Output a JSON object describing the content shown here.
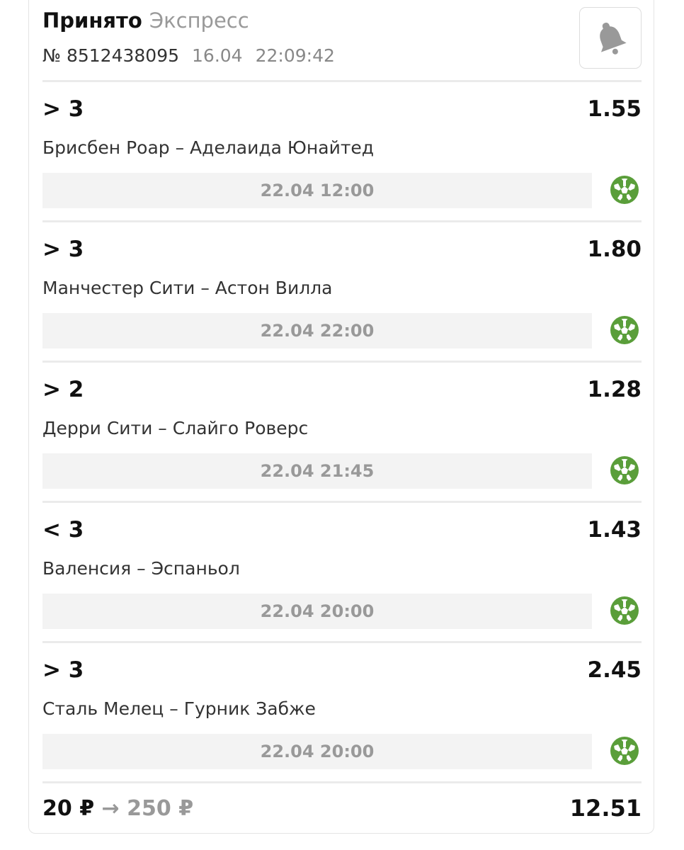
{
  "header": {
    "status": "Принято",
    "type": "Экспресс",
    "number": "№ 8512438095",
    "date": "16.04",
    "time": "22:09:42",
    "bell_icon": "bell-icon"
  },
  "events": [
    {
      "selection": "> 3",
      "odds": "1.55",
      "teams": "Брисбен Роар – Аделаида Юнайтед",
      "start": "22.04 12:00",
      "sport_icon": "soccer-ball-icon"
    },
    {
      "selection": "> 3",
      "odds": "1.80",
      "teams": "Манчестер Сити – Астон Вилла",
      "start": "22.04 22:00",
      "sport_icon": "soccer-ball-icon"
    },
    {
      "selection": "> 2",
      "odds": "1.28",
      "teams": "Дерри Сити – Слайго Роверс",
      "start": "22.04 21:45",
      "sport_icon": "soccer-ball-icon"
    },
    {
      "selection": "< 3",
      "odds": "1.43",
      "teams": "Валенсия – Эспаньол",
      "start": "22.04 20:00",
      "sport_icon": "soccer-ball-icon"
    },
    {
      "selection": "> 3",
      "odds": "2.45",
      "teams": "Сталь Мелец – Гурник Забже",
      "start": "22.04 20:00",
      "sport_icon": "soccer-ball-icon"
    }
  ],
  "footer": {
    "stake": "20 ₽",
    "arrow": "→",
    "potential_win": "250 ₽",
    "total_odds": "12.51"
  },
  "colors": {
    "accent_green": "#5a9e3a",
    "muted": "#999999"
  }
}
